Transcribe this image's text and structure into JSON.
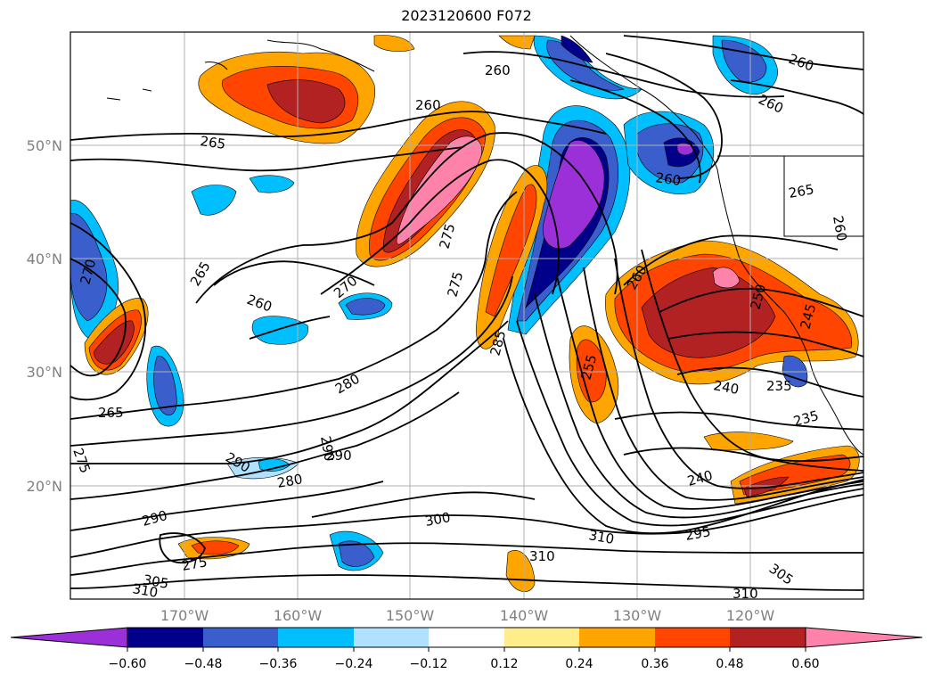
{
  "title": "2023120600 F072",
  "map": {
    "lat_labels": [
      "50°N",
      "40°N",
      "30°N",
      "20°N"
    ],
    "lon_labels": [
      "170°W",
      "160°W",
      "150°W",
      "140°W",
      "130°W",
      "120°W"
    ],
    "contour_labels": [
      "260",
      "260",
      "260",
      "260",
      "265",
      "260",
      "260",
      "265",
      "270",
      "275",
      "275",
      "260",
      "265",
      "260",
      "270",
      "285",
      "255",
      "250",
      "245",
      "280",
      "240",
      "235",
      "235",
      "265",
      "275",
      "290",
      "290",
      "280",
      "290",
      "300",
      "240",
      "290",
      "275",
      "305",
      "310",
      "310",
      "295",
      "310",
      "305",
      "310"
    ]
  },
  "colorbar": {
    "ticks": [
      "−0.60",
      "−0.48",
      "−0.36",
      "−0.24",
      "−0.12",
      "0.12",
      "0.24",
      "0.36",
      "0.48",
      "0.60"
    ],
    "colors": [
      "#9b30d9",
      "#00008b",
      "#3a5fcd",
      "#00bfff",
      "#b0e2ff",
      "#ffffff",
      "#ffec8b",
      "#ffa500",
      "#ff4500",
      "#b22222",
      "#ff82ab"
    ]
  }
}
